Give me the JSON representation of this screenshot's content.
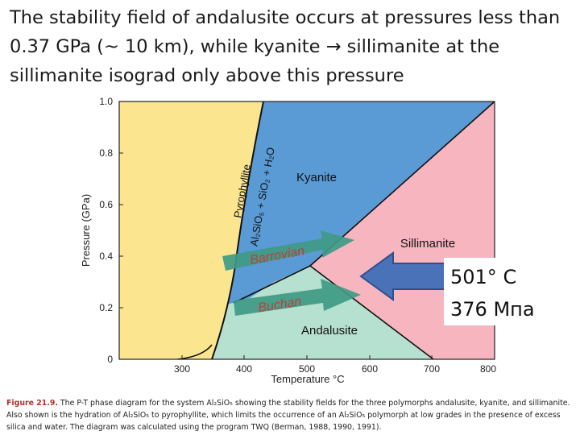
{
  "title": {
    "line1": "The stability field of andalusite occurs at pressures less than",
    "line2": "0.37 GPa (~ 10 km), while kyanite → sillimanite at the",
    "line3": "sillimanite isograd only above this pressure"
  },
  "diagram": {
    "x_axis": {
      "label": "Temperature °C",
      "ticks": [
        "300",
        "400",
        "500",
        "600",
        "700",
        "800"
      ],
      "range": [
        200,
        800
      ]
    },
    "y_axis": {
      "label": "Pressure (GPa)",
      "ticks": [
        "0",
        "0.2",
        "0.4",
        "0.6",
        "0.8",
        "1.0"
      ],
      "range": [
        0,
        1.0
      ]
    },
    "fields": {
      "kyanite": "Kyanite",
      "sillimanite": "Sillimanite",
      "andalusite": "Andalusite"
    },
    "reaction_labels": {
      "pyrophyllite": "Pyrophyllite",
      "reaction": "Al₂SiO₅ + SiO₂ + H₂O"
    },
    "paths": {
      "barrovian": "Barrovian",
      "buchan": "Buchan"
    },
    "colors": {
      "pyrophyllite_field": "#fbe58f",
      "kyanite_field": "#5a9bd5",
      "sillimanite_field": "#f7b5c0",
      "andalusite_field": "#b6e0cf",
      "path_arrow": "#3f9a86",
      "callout_arrow": "#4a72b8"
    }
  },
  "callout": {
    "temperature": "501° C",
    "pressure": "376 Мпа"
  },
  "caption": {
    "label": "Figure 21.9.",
    "text": " The P-T phase diagram for the system Al₂SiO₅ showing the stability fields for the three polymorphs andalusite, kyanite, and sillimanite. Also shown is the hydration of Al₂SiO₅ to pyrophyllite, which limits the occurrence of an Al₂SiO₅ polymorph at low grades in the presence of excess silica and water. The diagram was calculated using the program TWQ (Berman, 1988, 1990, 1991)."
  }
}
